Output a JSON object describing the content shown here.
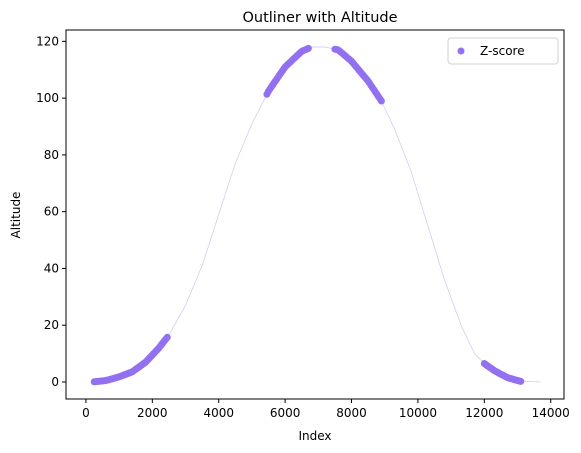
{
  "chart_data": {
    "type": "scatter",
    "title": "Outliner with Altitude",
    "xlabel": "Index",
    "ylabel": "Altitude",
    "xlim": [
      -600,
      14400
    ],
    "ylim": [
      -6,
      124
    ],
    "xticks": [
      0,
      2000,
      4000,
      6000,
      8000,
      10000,
      12000,
      14000
    ],
    "yticks": [
      0,
      20,
      40,
      60,
      80,
      100,
      120
    ],
    "legend": {
      "position": "top-right",
      "entries": [
        "Z-score"
      ]
    },
    "colors": {
      "scatter": "#9370f0",
      "line": "#c9c9f2"
    },
    "profile": {
      "description": "Background altitude line",
      "points": [
        [
          200,
          0
        ],
        [
          600,
          0.5
        ],
        [
          1000,
          1.8
        ],
        [
          1400,
          3.6
        ],
        [
          1800,
          7
        ],
        [
          2200,
          12
        ],
        [
          2500,
          16.5
        ],
        [
          3000,
          27
        ],
        [
          3500,
          41
        ],
        [
          4000,
          59
        ],
        [
          4500,
          77
        ],
        [
          5000,
          91
        ],
        [
          5500,
          102.5
        ],
        [
          6000,
          111
        ],
        [
          6500,
          116.5
        ],
        [
          6800,
          118
        ],
        [
          7200,
          118
        ],
        [
          7600,
          117
        ],
        [
          8000,
          113
        ],
        [
          8500,
          106
        ],
        [
          8900,
          99
        ],
        [
          9300,
          89
        ],
        [
          9800,
          74
        ],
        [
          10300,
          55
        ],
        [
          10800,
          36
        ],
        [
          11300,
          20
        ],
        [
          11700,
          10
        ],
        [
          12000,
          6.5
        ],
        [
          12300,
          4
        ],
        [
          12700,
          1.5
        ],
        [
          13100,
          0.2
        ],
        [
          13700,
          0
        ]
      ]
    },
    "series": [
      {
        "name": "Z-score",
        "segments": [
          {
            "x_start": 250,
            "x_end": 2450,
            "count": 60
          },
          {
            "x_start": 5450,
            "x_end": 6700,
            "count": 30
          },
          {
            "x_start": 7500,
            "x_end": 8900,
            "count": 32
          },
          {
            "x_start": 12000,
            "x_end": 13100,
            "count": 34
          }
        ]
      }
    ]
  }
}
